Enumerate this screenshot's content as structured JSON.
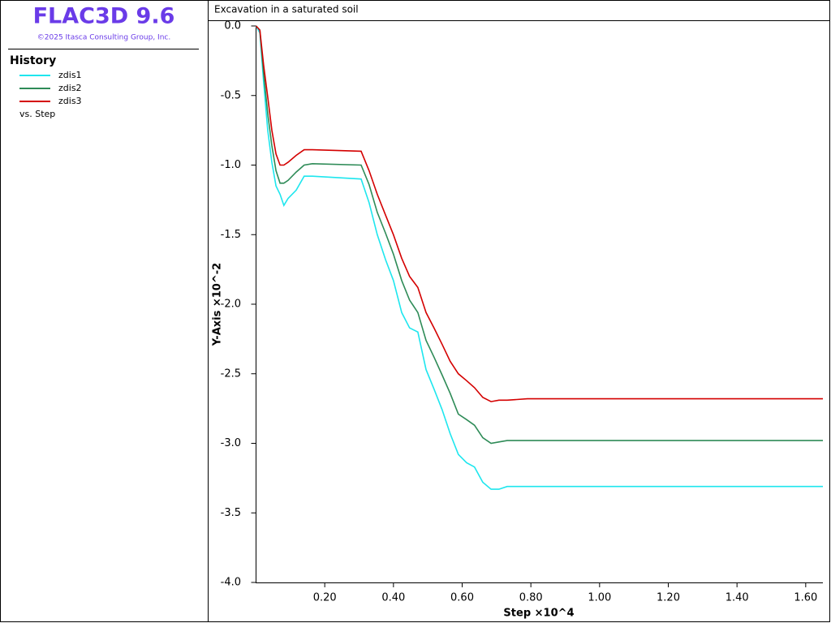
{
  "app": {
    "title": "FLAC3D 9.6",
    "copyright": "©2025 Itasca Consulting Group, Inc."
  },
  "chart_data": {
    "type": "line",
    "title": "Excavation in a saturated soil",
    "legend_title": "History",
    "legend_note": "vs. Step",
    "xlabel": "Step ×10^4",
    "ylabel": "Y-Axis ×10^-2",
    "x": [
      0,
      0.011,
      0.022,
      0.034,
      0.046,
      0.058,
      0.07,
      0.081,
      0.093,
      0.117,
      0.14,
      0.164,
      0.306,
      0.329,
      0.353,
      0.377,
      0.4,
      0.424,
      0.447,
      0.471,
      0.495,
      0.518,
      0.542,
      0.565,
      0.589,
      0.613,
      0.636,
      0.66,
      0.684,
      0.707,
      0.731,
      0.79,
      1.65
    ],
    "series": [
      {
        "name": "zdis1",
        "color": "#1ee6ee",
        "values": [
          0,
          -0.05,
          -0.4,
          -0.75,
          -0.98,
          -1.15,
          -1.21,
          -1.29,
          -1.24,
          -1.18,
          -1.08,
          -1.08,
          -1.1,
          -1.27,
          -1.5,
          -1.68,
          -1.83,
          -2.06,
          -2.17,
          -2.2,
          -2.47,
          -2.61,
          -2.76,
          -2.93,
          -3.08,
          -3.14,
          -3.17,
          -3.28,
          -3.33,
          -3.33,
          -3.31,
          -3.31,
          -3.31
        ]
      },
      {
        "name": "zdis2",
        "color": "#2e8b57",
        "values": [
          0,
          -0.03,
          -0.34,
          -0.63,
          -0.86,
          -1.04,
          -1.13,
          -1.13,
          -1.11,
          -1.05,
          -1.0,
          -0.99,
          -1.0,
          -1.14,
          -1.34,
          -1.49,
          -1.64,
          -1.83,
          -1.97,
          -2.06,
          -2.26,
          -2.38,
          -2.51,
          -2.64,
          -2.79,
          -2.83,
          -2.87,
          -2.96,
          -3.0,
          -2.99,
          -2.98,
          -2.98,
          -2.98
        ]
      },
      {
        "name": "zdis3",
        "color": "#d40000",
        "values": [
          0,
          -0.03,
          -0.28,
          -0.51,
          -0.75,
          -0.92,
          -1.0,
          -1.0,
          -0.98,
          -0.93,
          -0.89,
          -0.89,
          -0.9,
          -1.04,
          -1.21,
          -1.36,
          -1.5,
          -1.67,
          -1.8,
          -1.88,
          -2.06,
          -2.17,
          -2.29,
          -2.41,
          -2.5,
          -2.55,
          -2.6,
          -2.67,
          -2.7,
          -2.69,
          -2.69,
          -2.68,
          -2.68
        ]
      }
    ],
    "xlim": [
      0,
      1.65
    ],
    "ylim": [
      -4,
      0
    ],
    "xticks": [
      {
        "value": 0.2,
        "label": "0.20"
      },
      {
        "value": 0.4,
        "label": "0.40"
      },
      {
        "value": 0.6,
        "label": "0.60"
      },
      {
        "value": 0.8,
        "label": "0.80"
      },
      {
        "value": 1.0,
        "label": "1.00"
      },
      {
        "value": 1.2,
        "label": "1.20"
      },
      {
        "value": 1.4,
        "label": "1.40"
      },
      {
        "value": 1.6,
        "label": "1.60"
      }
    ],
    "yticks": [
      {
        "value": 0,
        "label": "0.0"
      },
      -0.5,
      {
        "value": -1,
        "label": "-1.0"
      },
      -1.5,
      {
        "value": -2,
        "label": "-2.0"
      },
      -2.5,
      {
        "value": -3,
        "label": "-3.0"
      },
      -3.5,
      {
        "value": -4,
        "label": "-4.0"
      }
    ],
    "grid": false
  }
}
